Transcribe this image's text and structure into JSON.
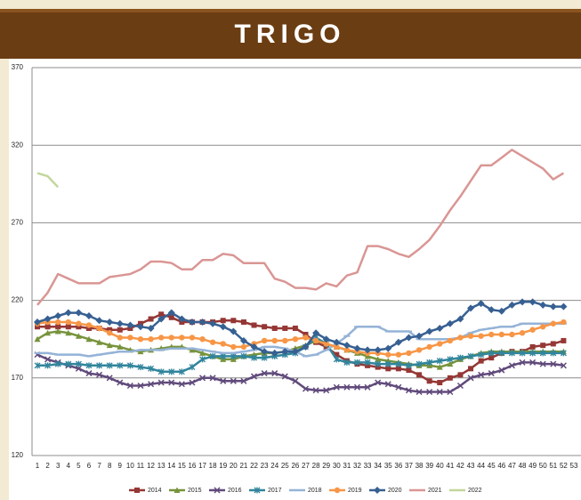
{
  "chart_data": {
    "type": "line",
    "title": "TRIGO",
    "categories": [
      1,
      2,
      3,
      4,
      5,
      6,
      7,
      8,
      9,
      10,
      11,
      12,
      13,
      14,
      15,
      16,
      17,
      18,
      19,
      20,
      21,
      22,
      23,
      24,
      25,
      26,
      27,
      28,
      29,
      30,
      31,
      32,
      33,
      34,
      35,
      36,
      37,
      38,
      39,
      40,
      41,
      42,
      43,
      44,
      45,
      46,
      47,
      48,
      49,
      50,
      51,
      52,
      53
    ],
    "ylim": [
      120,
      370
    ],
    "yticks": [
      120,
      170,
      220,
      270,
      320,
      370
    ],
    "grid": true,
    "legend": "bottom",
    "series": [
      {
        "name": "2014",
        "color": "#953735",
        "marker": "square",
        "values": [
          203,
          203,
          203,
          203,
          203,
          202,
          202,
          201,
          201,
          202,
          205,
          208,
          211,
          209,
          206,
          206,
          206,
          206,
          207,
          207,
          206,
          204,
          203,
          202,
          202,
          202,
          198,
          193,
          190,
          185,
          181,
          179,
          178,
          177,
          176,
          176,
          175,
          172,
          168,
          167,
          170,
          172,
          176,
          181,
          183,
          186,
          187,
          187,
          190,
          191,
          192,
          194,
          null
        ]
      },
      {
        "name": "2015",
        "color": "#77933c",
        "marker": "triangle",
        "values": [
          195,
          199,
          200,
          199,
          197,
          195,
          193,
          191,
          190,
          188,
          187,
          188,
          189,
          190,
          190,
          188,
          186,
          184,
          182,
          182,
          184,
          185,
          186,
          186,
          187,
          189,
          191,
          194,
          192,
          190,
          188,
          186,
          184,
          182,
          181,
          180,
          179,
          178,
          178,
          177,
          179,
          182,
          184,
          186,
          187,
          187,
          187,
          187,
          187,
          187,
          187,
          187,
          null
        ]
      },
      {
        "name": "2016",
        "color": "#604a7b",
        "marker": "x",
        "values": [
          185,
          182,
          180,
          178,
          176,
          173,
          172,
          170,
          167,
          165,
          165,
          166,
          167,
          167,
          166,
          167,
          170,
          170,
          168,
          168,
          168,
          171,
          173,
          173,
          171,
          168,
          163,
          162,
          162,
          164,
          164,
          164,
          164,
          167,
          166,
          164,
          162,
          161,
          161,
          161,
          161,
          165,
          170,
          172,
          173,
          175,
          178,
          180,
          180,
          179,
          179,
          178,
          null
        ]
      },
      {
        "name": "2017",
        "color": "#31859c",
        "marker": "star",
        "values": [
          178,
          178,
          179,
          179,
          179,
          178,
          178,
          178,
          178,
          178,
          177,
          176,
          174,
          174,
          174,
          177,
          182,
          184,
          184,
          184,
          184,
          183,
          183,
          184,
          185,
          186,
          190,
          196,
          192,
          182,
          180,
          180,
          180,
          179,
          179,
          179,
          178,
          179,
          180,
          181,
          182,
          183,
          184,
          185,
          186,
          186,
          186,
          186,
          186,
          186,
          186,
          186,
          null
        ]
      },
      {
        "name": "2018",
        "color": "#95b3d7",
        "marker": "dash",
        "values": [
          186,
          186,
          185,
          185,
          185,
          184,
          185,
          186,
          187,
          187,
          188,
          188,
          188,
          189,
          189,
          189,
          188,
          187,
          186,
          186,
          187,
          188,
          190,
          190,
          189,
          187,
          184,
          185,
          188,
          192,
          197,
          203,
          203,
          203,
          200,
          200,
          200,
          195,
          195,
          195,
          195,
          196,
          199,
          201,
          202,
          203,
          203,
          205,
          205,
          205,
          205,
          205,
          null
        ]
      },
      {
        "name": "2019",
        "color": "#f79646",
        "marker": "circle",
        "values": [
          205,
          206,
          206,
          206,
          205,
          204,
          202,
          199,
          196,
          196,
          195,
          195,
          196,
          196,
          196,
          196,
          195,
          193,
          192,
          190,
          190,
          192,
          194,
          194,
          194,
          195,
          196,
          194,
          192,
          190,
          188,
          187,
          186,
          186,
          185,
          185,
          186,
          188,
          190,
          192,
          194,
          196,
          197,
          197,
          198,
          198,
          198,
          199,
          201,
          203,
          205,
          206,
          null
        ]
      },
      {
        "name": "2020",
        "color": "#376092",
        "marker": "diamond",
        "values": [
          206,
          208,
          210,
          212,
          212,
          210,
          207,
          206,
          205,
          204,
          203,
          202,
          208,
          212,
          208,
          206,
          206,
          205,
          203,
          200,
          194,
          190,
          187,
          186,
          187,
          187,
          190,
          199,
          195,
          193,
          191,
          189,
          188,
          188,
          189,
          193,
          196,
          197,
          200,
          202,
          205,
          208,
          215,
          218,
          214,
          213,
          217,
          219,
          219,
          217,
          216,
          216,
          null
        ]
      },
      {
        "name": "2021",
        "color": "#d99694",
        "marker": "none",
        "values": [
          217,
          225,
          237,
          234,
          231,
          231,
          231,
          235,
          236,
          237,
          240,
          245,
          245,
          244,
          240,
          240,
          246,
          246,
          250,
          249,
          244,
          244,
          244,
          234,
          232,
          228,
          228,
          227,
          231,
          229,
          236,
          238,
          255,
          255,
          253,
          250,
          248,
          253,
          259,
          268,
          278,
          287,
          297,
          307,
          307,
          312,
          317,
          313,
          309,
          305,
          298,
          302,
          null
        ]
      },
      {
        "name": "2022",
        "color": "#c3d69b",
        "marker": "none",
        "values": [
          302,
          300,
          293,
          null,
          null,
          null,
          null,
          null,
          null,
          null,
          null,
          null,
          null,
          null,
          null,
          null,
          null,
          null,
          null,
          null,
          null,
          null,
          null,
          null,
          null,
          null,
          null,
          null,
          null,
          null,
          null,
          null,
          null,
          null,
          null,
          null,
          null,
          null,
          null,
          null,
          null,
          null,
          null,
          null,
          null,
          null,
          null,
          null,
          null,
          null,
          null,
          null,
          null
        ]
      }
    ]
  }
}
